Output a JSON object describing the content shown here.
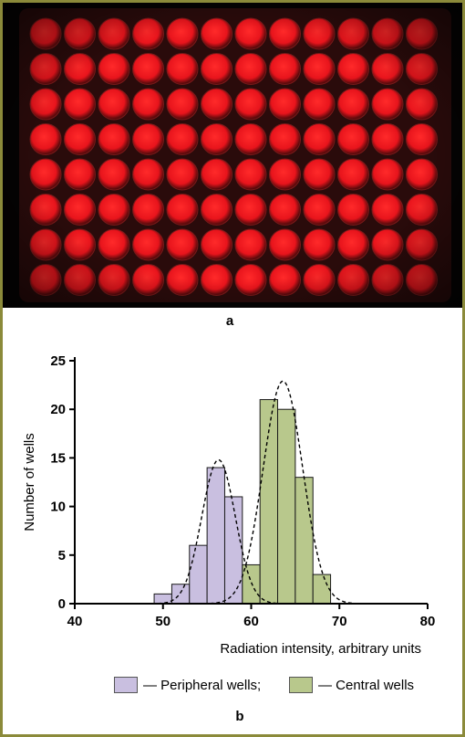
{
  "panel_a_label": "a",
  "panel_b_label": "b",
  "plate": {
    "rows": 8,
    "cols": 12,
    "well_color": "#e8141c",
    "background": "#050303"
  },
  "chart_data": {
    "type": "bar",
    "xlabel": "Radiation intensity, arbitrary units",
    "ylabel": "Number of wells",
    "xlim": [
      40,
      80
    ],
    "ylim": [
      0,
      25
    ],
    "xticks": [
      40,
      50,
      60,
      70,
      80
    ],
    "yticks": [
      0,
      5,
      10,
      15,
      20,
      25
    ],
    "bin_width": 2,
    "series": [
      {
        "name": "Peripheral wells",
        "color": "#c9bfe0",
        "bins": [
          {
            "start": 49,
            "count": 1
          },
          {
            "start": 51,
            "count": 2
          },
          {
            "start": 53,
            "count": 6
          },
          {
            "start": 55,
            "count": 14
          },
          {
            "start": 57,
            "count": 11
          }
        ],
        "fit": {
          "mean": 56.3,
          "peak": 14.8,
          "sd": 1.9
        }
      },
      {
        "name": "Central wells",
        "color": "#b8c88c",
        "bins": [
          {
            "start": 59,
            "count": 4
          },
          {
            "start": 61,
            "count": 21
          },
          {
            "start": 63,
            "count": 20
          },
          {
            "start": 65,
            "count": 13
          },
          {
            "start": 67,
            "count": 3
          }
        ],
        "fit": {
          "mean": 63.6,
          "peak": 22.9,
          "sd": 2.25
        }
      }
    ]
  },
  "legend": {
    "peripheral": "— Peripheral wells;",
    "central": "— Central wells"
  }
}
